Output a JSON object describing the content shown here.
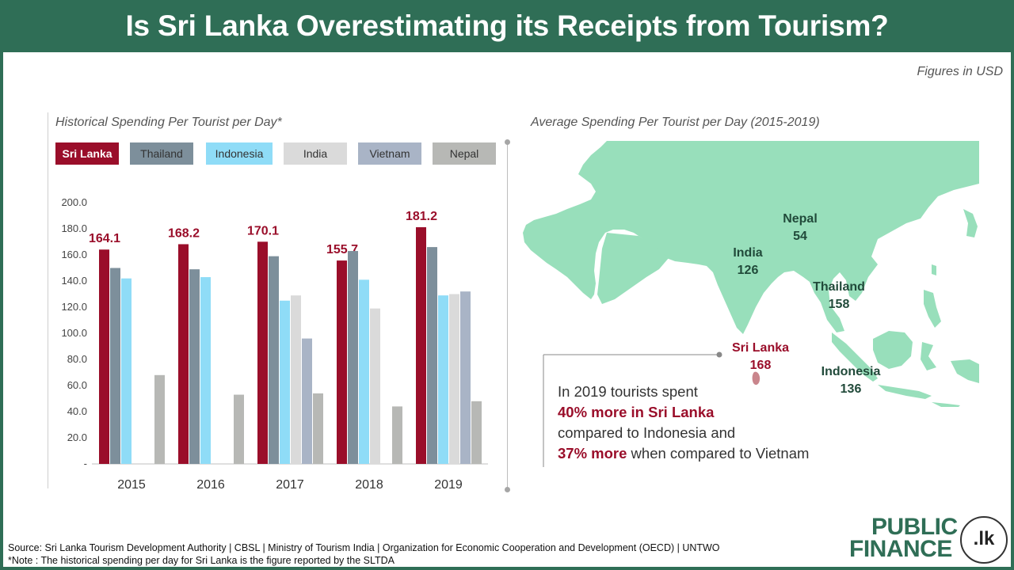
{
  "title": "Is Sri Lanka Overestimating its Receipts from Tourism?",
  "units_note": "Figures in USD",
  "left_subtitle": "Historical Spending Per Tourist per Day*",
  "right_subtitle": "Average Spending Per Tourist per Day (2015-2019)",
  "colors": {
    "Sri Lanka": "#9a0e2a",
    "Thailand": "#7d8f9b",
    "Indonesia": "#8fdcf7",
    "India": "#dadada",
    "Vietnam": "#a9b4c6",
    "Nepal": "#b7b8b5",
    "map_land": "#98dfbb",
    "header_bg": "#2f6e56"
  },
  "chart_data": {
    "type": "bar",
    "title": "Historical Spending Per Tourist per Day*",
    "categories": [
      "2015",
      "2016",
      "2017",
      "2018",
      "2019"
    ],
    "series": [
      {
        "name": "Sri Lanka",
        "values": [
          164.1,
          168.2,
          170.1,
          155.7,
          181.2
        ]
      },
      {
        "name": "Thailand",
        "values": [
          150,
          149,
          159,
          163,
          166
        ]
      },
      {
        "name": "Indonesia",
        "values": [
          142,
          143,
          125,
          141,
          129
        ]
      },
      {
        "name": "India",
        "values": [
          null,
          null,
          129,
          119,
          130
        ]
      },
      {
        "name": "Vietnam",
        "values": [
          null,
          null,
          96,
          null,
          132
        ]
      },
      {
        "name": "Nepal",
        "values": [
          68,
          53,
          54,
          44,
          48
        ]
      }
    ],
    "data_labels": [
      "164.1",
      "168.2",
      "170.1",
      "155.7",
      "181.2"
    ],
    "ylim": [
      0,
      200
    ],
    "yticks": [
      "-",
      "20.0",
      "40.0",
      "60.0",
      "80.0",
      "100.0",
      "120.0",
      "140.0",
      "160.0",
      "180.0",
      "200.0"
    ],
    "legend_position": "top",
    "grid": false
  },
  "map": {
    "labels": [
      {
        "name": "Nepal",
        "value": "54"
      },
      {
        "name": "India",
        "value": "126"
      },
      {
        "name": "Thailand",
        "value": "158"
      },
      {
        "name": "Sri Lanka",
        "value": "168"
      },
      {
        "name": "Indonesia",
        "value": "136"
      }
    ]
  },
  "callout": {
    "line1": "In 2019 tourists spent",
    "line2": "40% more in Sri Lanka",
    "line3": "compared to Indonesia and",
    "line4_hl": "37% more",
    "line4_rest": " when compared to Vietnam"
  },
  "source": {
    "line1": "Source:  Sri Lanka Tourism Development Authority | CBSL | Ministry of Tourism India | Organization for Economic Cooperation and Development (OECD) | UNTWO",
    "line2": "*Note :  The historical spending per day for Sri Lanka is the figure reported by the SLTDA"
  },
  "logo": {
    "line1": "PUBLIC",
    "line2": "FINANCE",
    "badge": ".lk"
  }
}
